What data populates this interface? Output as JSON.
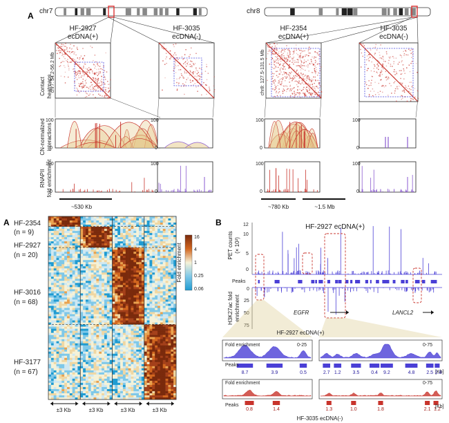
{
  "panel_a": {
    "letter": "A",
    "chromosomes": [
      {
        "label": "chr7",
        "samples": [
          {
            "name": "HF-2927",
            "status": "ecDNA(+)"
          },
          {
            "name": "HF-3035",
            "status": "ecDNA(-)"
          }
        ],
        "region": "chr7: 54.2-56.2 Mb",
        "scalebar": "~530 Kb"
      },
      {
        "label": "chr8",
        "samples": [
          {
            "name": "HF-2354",
            "status": "ecDNA(+)"
          },
          {
            "name": "HF-3035",
            "status": "ecDNA(-)"
          }
        ],
        "region": "chr8: 127.5-131.5 Mb",
        "scalebar_left": "~780 Kb",
        "scalebar_right": "~1.5 Mb"
      }
    ],
    "row_labels": {
      "heatmaps": [
        "Contact",
        "heatmaps"
      ],
      "interactions": [
        "CN-normalized",
        "interactions"
      ],
      "rnapii": [
        "RNAPII",
        "fold enrichment"
      ]
    },
    "axis_max": "100",
    "axis_min": "0"
  },
  "panel_a2": {
    "letter": "A",
    "groups": [
      {
        "name": "HF-2354",
        "n": "(n = 9)"
      },
      {
        "name": "HF-2927",
        "n": "(n = 20)"
      },
      {
        "name": "HF-3016",
        "n": "(n = 68)"
      },
      {
        "name": "HF-3177",
        "n": "(n = 67)"
      }
    ],
    "colorbar": {
      "title": "Fold enrichment",
      "ticks": [
        "16",
        "4",
        "1",
        "0.25",
        "0.06"
      ]
    },
    "window_label": "±3 Kb"
  },
  "panel_b": {
    "letter": "B",
    "title": "HF-2927 ecDNA(+)",
    "y_top_label": [
      "PET counts",
      "(× 10²)"
    ],
    "y_top_ticks": [
      "12",
      "10",
      "5",
      "0"
    ],
    "peaks_label": "Peaks",
    "y_bottom_label": [
      "H3K27ac fold",
      "enrichment"
    ],
    "y_bottom_ticks": [
      "0",
      "25",
      "50",
      "75"
    ],
    "genes": [
      "EGFR",
      "LANCL2"
    ],
    "zoom_top_title": "HF-2927 ecDNA(+)",
    "zoom_bottom_title": "HF-3035 ecDNA(-)",
    "zoom": {
      "fold_label": "Fold enrichment",
      "left_range": "0-25",
      "right_range": "0-75",
      "peaks_label": "Peaks",
      "kb_label": "[Kb]",
      "top_left_peaks": [
        "8.7",
        "3.9",
        "0.5"
      ],
      "top_right_peaks": [
        "2.7",
        "1.2",
        "3.5",
        "0.4",
        "9.2",
        "4.8",
        "2.5",
        "2.8"
      ],
      "bottom_left_peaks": [
        "0.8",
        "1.4"
      ],
      "bottom_right_peaks": [
        "1.3",
        "1.0",
        "1.8",
        "2.1",
        "1.2"
      ]
    }
  },
  "colors": {
    "red": "#c8342c",
    "blue": "#4a3fd6",
    "tan": "#e6c98a",
    "purple": "#8a5ad0"
  }
}
